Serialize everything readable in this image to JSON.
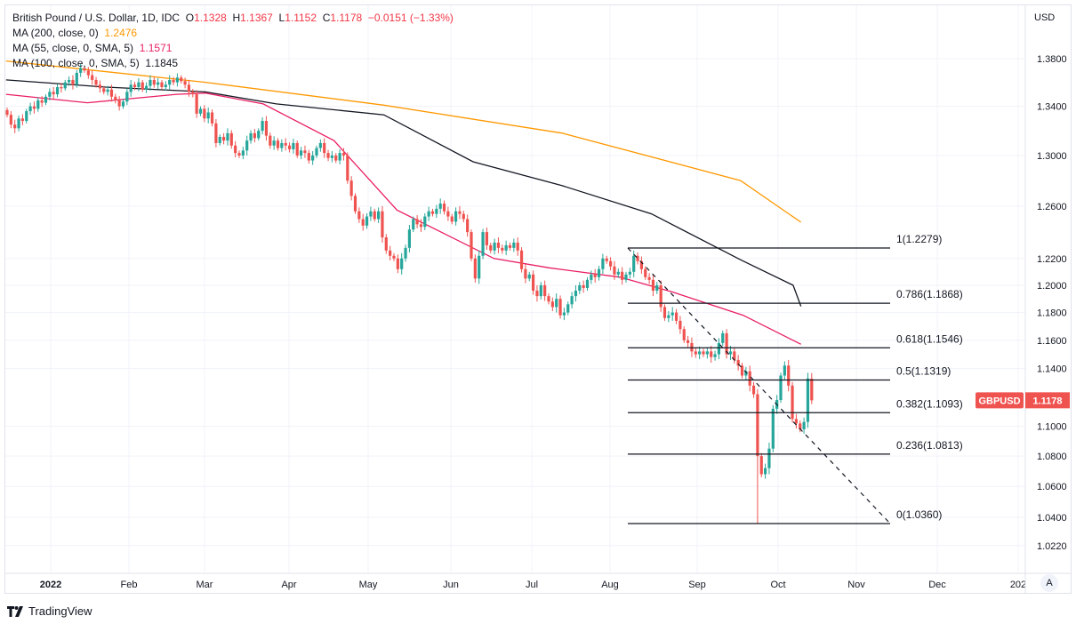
{
  "legend": {
    "title": "British Pound / U.S. Dollar, 1D, IDC",
    "open_label": "O",
    "open": "1.1328",
    "high_label": "H",
    "high": "1.1367",
    "low_label": "L",
    "low": "1.1152",
    "close_label": "C",
    "close": "1.1178",
    "change": "−0.0151 (−1.33%)",
    "ma200_label": "MA (200, close, 0)",
    "ma200_value": "1.2476",
    "ma55_label": "MA (55, close, 0, SMA, 5)",
    "ma55_value": "1.1571",
    "ma100_label": "MA (100, close, 0, SMA, 5)",
    "ma100_value": "1.1845"
  },
  "currency": "USD",
  "price_tag": {
    "symbol": "GBPUSD",
    "value": "1.1178"
  },
  "auto_scale_label": "A",
  "brand": "TradingView",
  "colors": {
    "up": "#26a69a",
    "down": "#ef5350",
    "ma200": "#ff9800",
    "ma55": "#e91e63",
    "ma100": "#131722",
    "tag": "#ef5350"
  },
  "chart_data": {
    "type": "candlestick",
    "symbol": "GBPUSD",
    "interval": "1D",
    "y_scale": "log",
    "ylim": [
      1.012,
      1.4
    ],
    "y_ticks": [
      "1.3800",
      "1.3400",
      "1.3000",
      "1.2600",
      "1.2200",
      "1.2000",
      "1.1800",
      "1.1600",
      "1.1400",
      "1.1000",
      "1.0800",
      "1.0600",
      "1.0400",
      "1.0220"
    ],
    "x_ticks": [
      "2022",
      "Feb",
      "Mar",
      "Apr",
      "May",
      "Jun",
      "Jul",
      "Aug",
      "Sep",
      "Oct",
      "Nov",
      "Dec",
      "202"
    ],
    "first_bar_date": "2021-12-15",
    "last_bar_date": "2022-10-14",
    "closes": [
      1.333,
      1.325,
      1.322,
      1.33,
      1.328,
      1.336,
      1.34,
      1.338,
      1.345,
      1.343,
      1.348,
      1.352,
      1.35,
      1.356,
      1.355,
      1.36,
      1.362,
      1.358,
      1.368,
      1.372,
      1.37,
      1.366,
      1.362,
      1.358,
      1.355,
      1.352,
      1.354,
      1.348,
      1.345,
      1.34,
      1.344,
      1.352,
      1.358,
      1.356,
      1.36,
      1.354,
      1.357,
      1.362,
      1.358,
      1.36,
      1.356,
      1.358,
      1.362,
      1.36,
      1.364,
      1.361,
      1.358,
      1.352,
      1.35,
      1.334,
      1.338,
      1.33,
      1.335,
      1.326,
      1.31,
      1.315,
      1.312,
      1.318,
      1.308,
      1.302,
      1.3,
      1.304,
      1.312,
      1.318,
      1.314,
      1.32,
      1.328,
      1.316,
      1.308,
      1.312,
      1.306,
      1.31,
      1.308,
      1.305,
      1.31,
      1.3,
      1.304,
      1.302,
      1.296,
      1.3,
      1.306,
      1.31,
      1.302,
      1.298,
      1.3,
      1.296,
      1.302,
      1.3,
      1.28,
      1.268,
      1.256,
      1.25,
      1.245,
      1.252,
      1.256,
      1.25,
      1.256,
      1.236,
      1.226,
      1.222,
      1.22,
      1.212,
      1.22,
      1.228,
      1.242,
      1.25,
      1.246,
      1.244,
      1.252,
      1.256,
      1.254,
      1.258,
      1.262,
      1.256,
      1.252,
      1.248,
      1.256,
      1.254,
      1.25,
      1.24,
      1.22,
      1.205,
      1.222,
      1.24,
      1.23,
      1.226,
      1.232,
      1.228,
      1.226,
      1.23,
      1.228,
      1.232,
      1.226,
      1.212,
      1.205,
      1.208,
      1.196,
      1.192,
      1.2,
      1.192,
      1.188,
      1.184,
      1.19,
      1.178,
      1.18,
      1.186,
      1.192,
      1.196,
      1.2,
      1.198,
      1.204,
      1.208,
      1.206,
      1.212,
      1.22,
      1.218,
      1.214,
      1.208,
      1.21,
      1.204,
      1.208,
      1.21,
      1.222,
      1.218,
      1.212,
      1.206,
      1.204,
      1.196,
      1.2,
      1.184,
      1.176,
      1.178,
      1.18,
      1.174,
      1.168,
      1.16,
      1.158,
      1.152,
      1.15,
      1.152,
      1.15,
      1.152,
      1.148,
      1.15,
      1.158,
      1.165,
      1.15,
      1.152,
      1.146,
      1.142,
      1.135,
      1.138,
      1.128,
      1.122,
      1.08,
      1.068,
      1.072,
      1.085,
      1.112,
      1.118,
      1.135,
      1.142,
      1.128,
      1.105,
      1.102,
      1.098,
      1.103,
      1.133,
      1.1178
    ],
    "last_bar": {
      "open": 1.1328,
      "high": 1.1367,
      "low": 1.1152,
      "close": 1.1178
    },
    "extreme_low": {
      "date": "2022-09-26",
      "low": 1.036
    },
    "moving_averages": [
      {
        "name": "MA (200, close, 0)",
        "color": "#ff9800",
        "points": [
          [
            "2021-12-15",
            1.378
          ],
          [
            "2022-03-01",
            1.36
          ],
          [
            "2022-05-08",
            1.341
          ],
          [
            "2022-07-15",
            1.318
          ],
          [
            "2022-09-21",
            1.28
          ],
          [
            "2022-10-14",
            1.2476
          ]
        ]
      },
      {
        "name": "MA (100, close, 0, SMA, 5)",
        "color": "#131722",
        "points": [
          [
            "2021-12-15",
            1.362
          ],
          [
            "2022-01-22",
            1.356
          ],
          [
            "2022-03-01",
            1.352
          ],
          [
            "2022-03-28",
            1.342
          ],
          [
            "2022-05-08",
            1.333
          ],
          [
            "2022-06-11",
            1.295
          ],
          [
            "2022-07-15",
            1.276
          ],
          [
            "2022-08-18",
            1.254
          ],
          [
            "2022-09-21",
            1.219
          ],
          [
            "2022-10-11",
            1.2
          ],
          [
            "2022-10-14",
            1.1845
          ]
        ]
      },
      {
        "name": "MA (55, close, 0, SMA, 5)",
        "color": "#e91e63",
        "points": [
          [
            "2021-12-15",
            1.35
          ],
          [
            "2022-01-15",
            1.343
          ],
          [
            "2022-02-18",
            1.35
          ],
          [
            "2022-03-01",
            1.351
          ],
          [
            "2022-03-23",
            1.342
          ],
          [
            "2022-04-19",
            1.312
          ],
          [
            "2022-05-13",
            1.257
          ],
          [
            "2022-06-19",
            1.22
          ],
          [
            "2022-07-10",
            1.213
          ],
          [
            "2022-08-06",
            1.206
          ],
          [
            "2022-08-26",
            1.195
          ],
          [
            "2022-09-22",
            1.178
          ],
          [
            "2022-10-14",
            1.1571
          ]
        ]
      }
    ],
    "fibonacci": {
      "start": {
        "date": "2022-08-09",
        "price": 1.2279
      },
      "end": {
        "date": "2022-11-17",
        "price": 1.036
      },
      "levels": [
        {
          "ratio": "1",
          "price": 1.2279,
          "label": "1(1.2279)"
        },
        {
          "ratio": "0.786",
          "price": 1.1868,
          "label": "0.786(1.1868)"
        },
        {
          "ratio": "0.618",
          "price": 1.1546,
          "label": "0.618(1.1546)"
        },
        {
          "ratio": "0.5",
          "price": 1.1319,
          "label": "0.5(1.1319)"
        },
        {
          "ratio": "0.382",
          "price": 1.1093,
          "label": "0.382(1.1093)"
        },
        {
          "ratio": "0.236",
          "price": 1.0813,
          "label": "0.236(1.0813)"
        },
        {
          "ratio": "0",
          "price": 1.036,
          "label": "0(1.0360)"
        }
      ]
    }
  }
}
